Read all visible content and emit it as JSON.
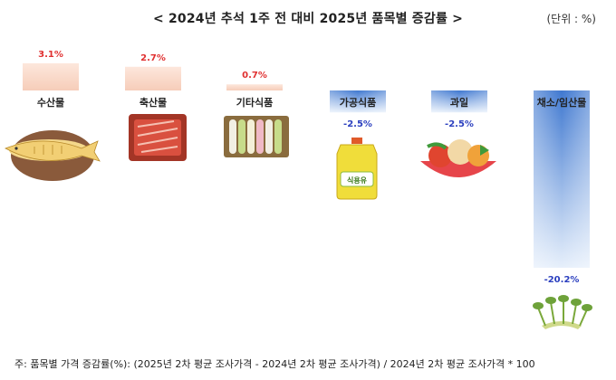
{
  "title": "< 2024년 추석 1주 전 대비 2025년 품목별 증감률 >",
  "unit": "(단위 : %)",
  "footnote": "주: 품목별 가격 증감률(%): (2025년 2차 평균 조사가격 - 2024년 2차 평균 조사가격) / 2024년 2차 평균 조사가격 * 100",
  "colors": {
    "positive_bar": "#f8d8c8",
    "negative_bar": "#5b8fd6",
    "positive_label": "#e03030",
    "negative_label": "#2b3fbf"
  },
  "chart_data": {
    "type": "bar",
    "categories": [
      "수산물",
      "축산물",
      "기타식품",
      "가공식품",
      "과일",
      "채소/임산물"
    ],
    "values": [
      3.1,
      2.7,
      0.7,
      -2.5,
      -2.5,
      -20.2
    ],
    "value_labels": [
      "3.1%",
      "2.7%",
      "0.7%",
      "-2.5%",
      "-2.5%",
      "-20.2%"
    ],
    "icons": [
      "fish-icon",
      "meat-icon",
      "rice-cake-icon",
      "cooking-oil-icon",
      "fruit-bowl-icon",
      "vegetable-icon"
    ],
    "oil_label": "식용유",
    "title": "",
    "xlabel": "",
    "ylabel": "",
    "ylim": [
      -20.2,
      3.1
    ],
    "grid": false,
    "legend": "none"
  }
}
